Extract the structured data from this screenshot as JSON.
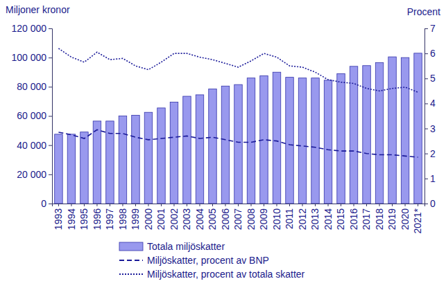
{
  "chart_data": {
    "type": "bar",
    "y_label": "Miljoner kronor",
    "y2_label": "Procent",
    "categories": [
      "1993",
      "1994",
      "1995",
      "1996",
      "1997",
      "1998",
      "1999",
      "2000",
      "2001",
      "2002",
      "2003",
      "2004",
      "2005",
      "2006",
      "2007",
      "2008",
      "2009",
      "2010",
      "2011",
      "2012",
      "2013",
      "2014",
      "2015",
      "2016",
      "2017",
      "2018",
      "2019",
      "2020",
      "2021*"
    ],
    "ylim": [
      0,
      120000
    ],
    "yticks": [
      0,
      {
        "value": 20000,
        "label": "20 000"
      },
      {
        "value": 40000,
        "label": "40 000"
      },
      {
        "value": 60000,
        "label": "60 000"
      },
      {
        "value": 80000,
        "label": "80 000"
      },
      {
        "value": 100000,
        "label": "100 000"
      },
      {
        "value": 120000,
        "label": "120 000"
      }
    ],
    "y2lim": [
      0,
      7
    ],
    "y2ticks": [
      0,
      1,
      2,
      3,
      4,
      5,
      6,
      7
    ],
    "legend": "bottom",
    "series": [
      {
        "name": "Totala miljöskatter",
        "type": "bar",
        "color": "#9999ee",
        "values": [
          47500,
          47500,
          49000,
          56500,
          56500,
          60000,
          60500,
          62500,
          65500,
          69500,
          73500,
          74500,
          78500,
          80500,
          81500,
          86000,
          87500,
          90000,
          86500,
          86000,
          86000,
          84500,
          89000,
          94000,
          94500,
          96500,
          100500,
          100000,
          103000
        ]
      },
      {
        "name": "Miljöskatter, procent av BNP",
        "type": "line",
        "axis": "y2",
        "line_style": "dashed",
        "color": "#1a1a99",
        "values": [
          2.85,
          2.75,
          2.6,
          2.95,
          2.8,
          2.8,
          2.65,
          2.55,
          2.6,
          2.65,
          2.7,
          2.6,
          2.65,
          2.55,
          2.45,
          2.45,
          2.55,
          2.5,
          2.35,
          2.3,
          2.25,
          2.15,
          2.1,
          2.1,
          2.0,
          1.95,
          1.95,
          1.9,
          1.85
        ]
      },
      {
        "name": "Miljöskatter, procent av totala skatter",
        "type": "line",
        "axis": "y2",
        "line_style": "dotted",
        "color": "#1a1a99",
        "values": [
          6.2,
          5.85,
          5.65,
          6.05,
          5.75,
          5.8,
          5.5,
          5.35,
          5.65,
          6.0,
          6.0,
          5.85,
          5.75,
          5.6,
          5.45,
          5.7,
          6.0,
          5.85,
          5.5,
          5.45,
          5.25,
          4.95,
          4.85,
          4.8,
          4.6,
          4.5,
          4.6,
          4.65,
          4.45
        ]
      }
    ]
  }
}
